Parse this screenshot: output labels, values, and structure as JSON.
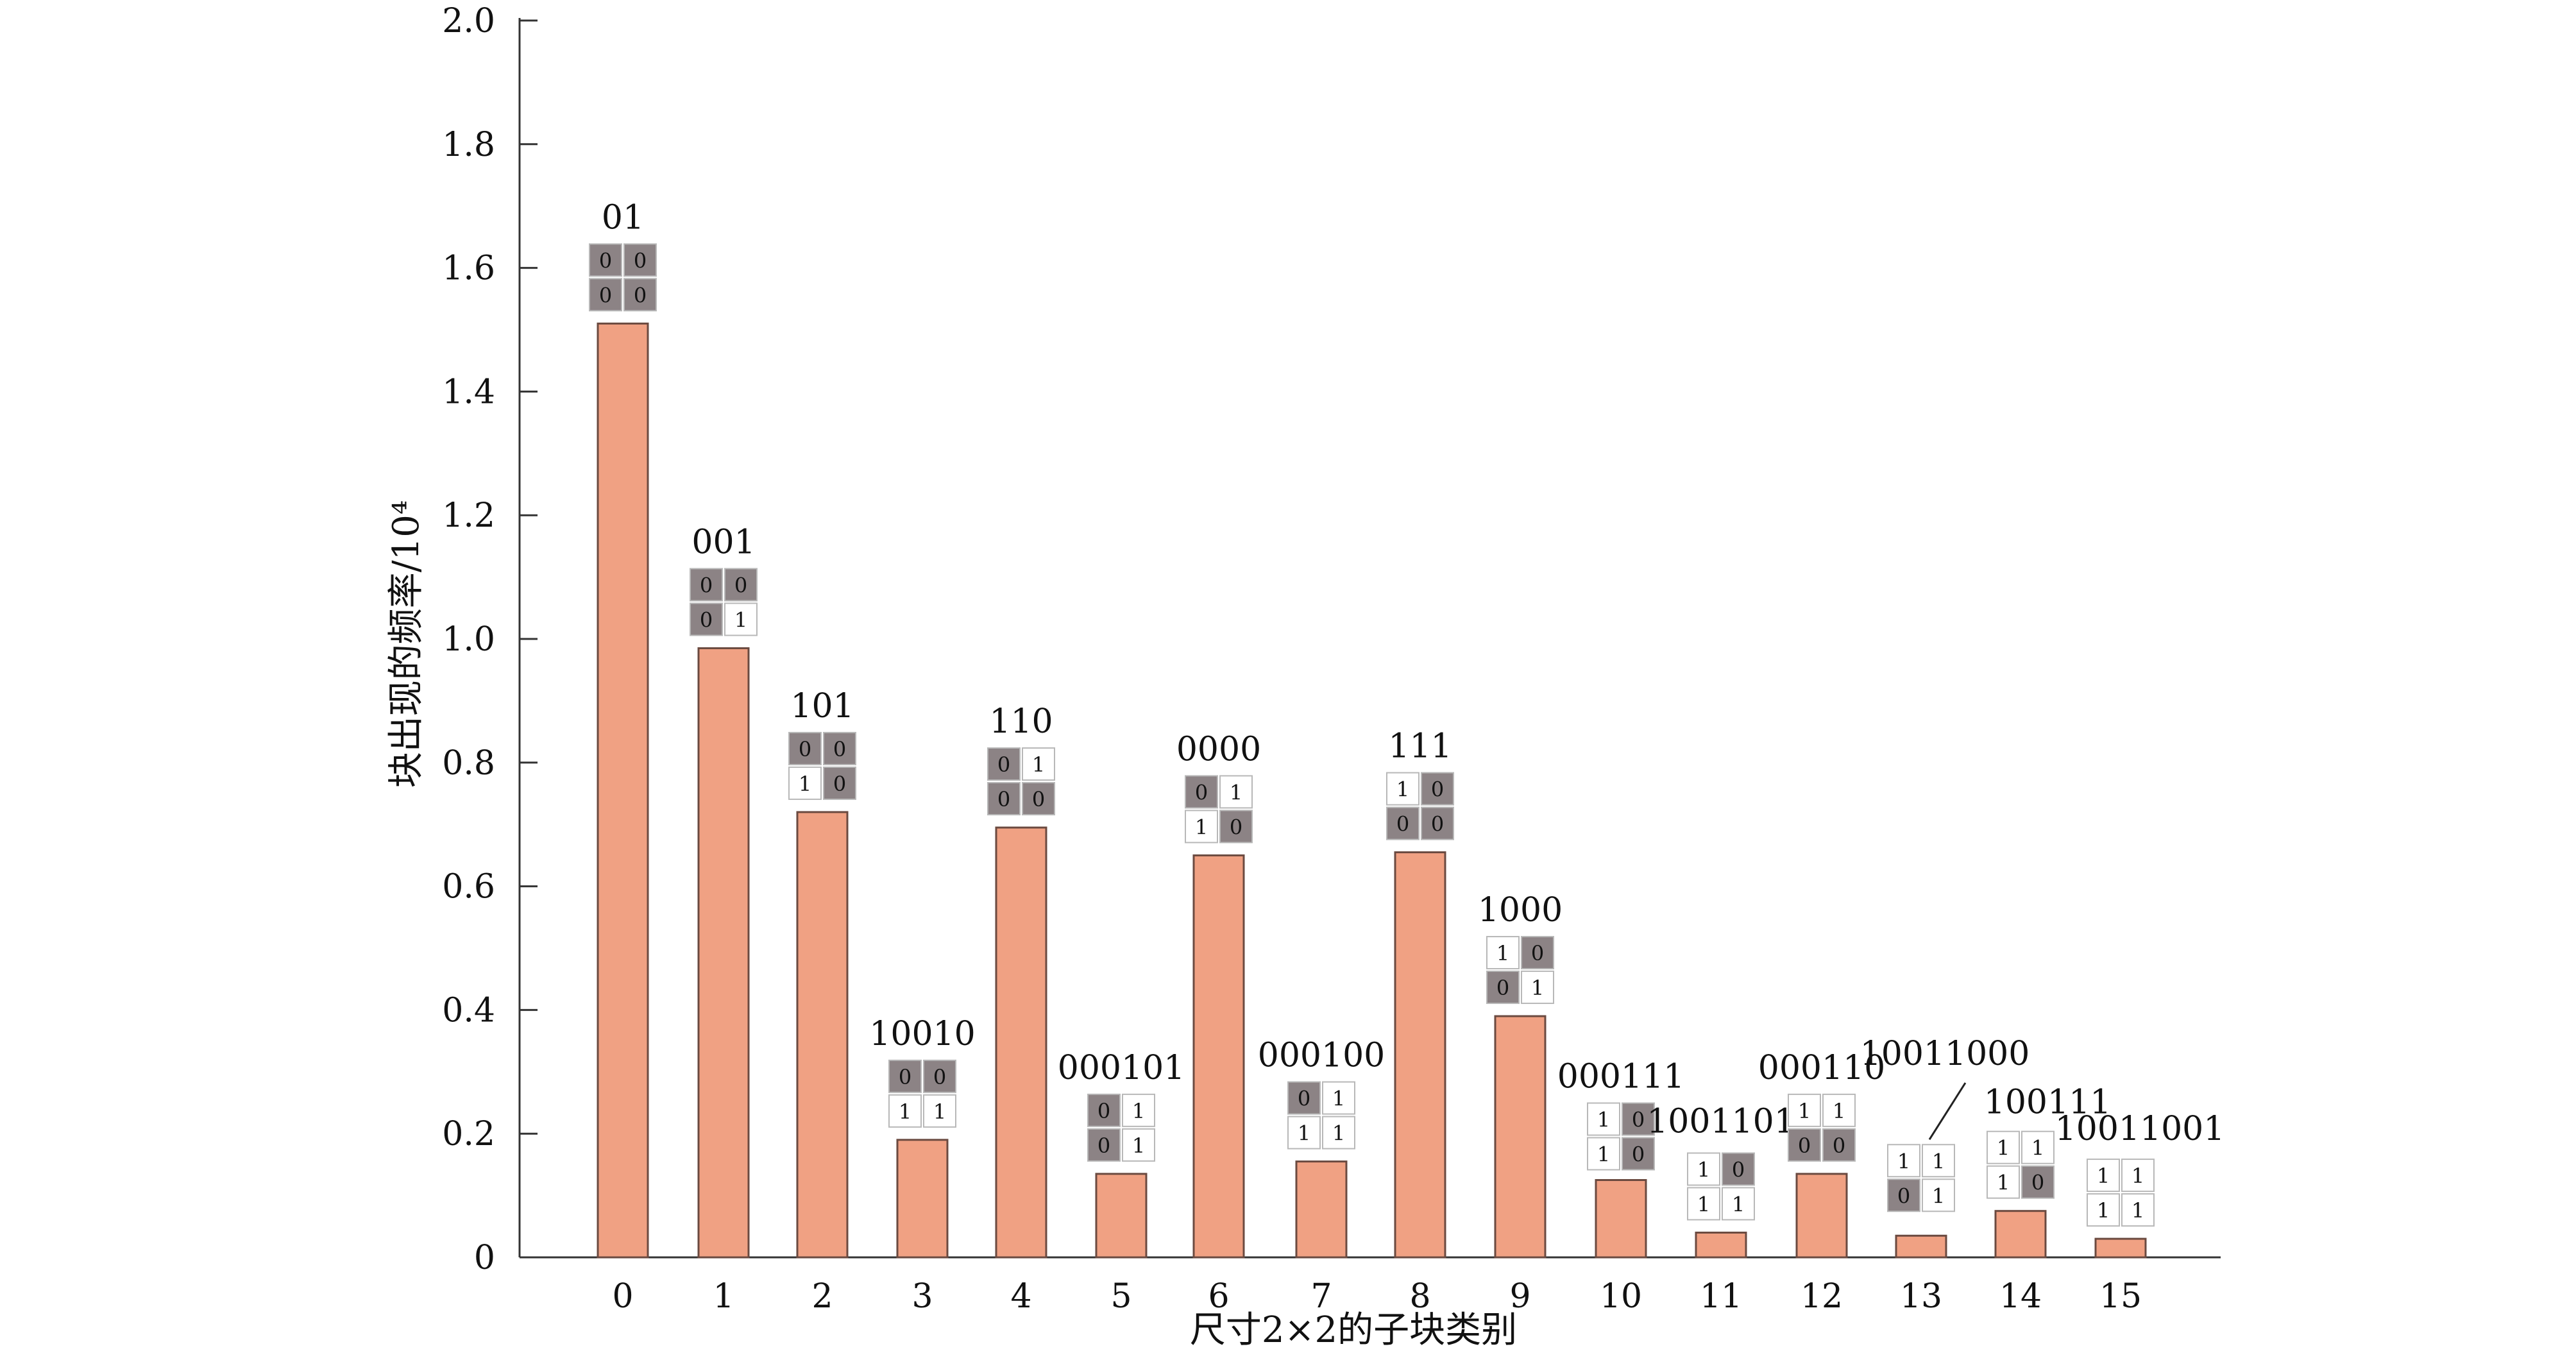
{
  "chart_data": {
    "type": "bar",
    "title": "",
    "xlabel": "尺寸2×2的子块类别",
    "ylabel": "块出现的频率/10⁴",
    "ylim": [
      0,
      2.0
    ],
    "yticks": [
      "0",
      "0.2",
      "0.4",
      "0.6",
      "0.8",
      "1.0",
      "1.2",
      "1.4",
      "1.6",
      "1.8",
      "2.0"
    ],
    "categories": [
      "0",
      "1",
      "2",
      "3",
      "4",
      "5",
      "6",
      "7",
      "8",
      "9",
      "10",
      "11",
      "12",
      "13",
      "14",
      "15"
    ],
    "values": [
      1.51,
      0.985,
      0.72,
      0.19,
      0.695,
      0.135,
      0.65,
      0.155,
      0.655,
      0.39,
      0.125,
      0.04,
      0.135,
      0.035,
      0.075,
      0.03
    ],
    "codes": [
      "01",
      "001",
      "101",
      "10010",
      "110",
      "000101",
      "0000",
      "000100",
      "111",
      "1000",
      "000111",
      "1001101",
      "000110",
      "10011000",
      "100111",
      "10011001"
    ],
    "blocks": [
      [
        "0",
        "0",
        "0",
        "0"
      ],
      [
        "0",
        "0",
        "0",
        "1"
      ],
      [
        "0",
        "0",
        "1",
        "0"
      ],
      [
        "0",
        "0",
        "1",
        "1"
      ],
      [
        "0",
        "1",
        "0",
        "0"
      ],
      [
        "0",
        "1",
        "0",
        "1"
      ],
      [
        "0",
        "1",
        "1",
        "0"
      ],
      [
        "0",
        "1",
        "1",
        "1"
      ],
      [
        "1",
        "0",
        "0",
        "0"
      ],
      [
        "1",
        "0",
        "0",
        "1"
      ],
      [
        "1",
        "0",
        "1",
        "0"
      ],
      [
        "1",
        "0",
        "1",
        "1"
      ],
      [
        "1",
        "1",
        "0",
        "0"
      ],
      [
        "1",
        "1",
        "0",
        "1"
      ],
      [
        "1",
        "1",
        "1",
        "0"
      ],
      [
        "1",
        "1",
        "1",
        "1"
      ]
    ],
    "grid": false,
    "legend": "none",
    "colors": {
      "bar_fill": "#f0a183",
      "bar_stroke": "#6b4a40",
      "axis": "#333333",
      "cell_zero": "#8c8385",
      "cell_one": "#ffffff",
      "cell_border": "#b8b8b8"
    }
  }
}
